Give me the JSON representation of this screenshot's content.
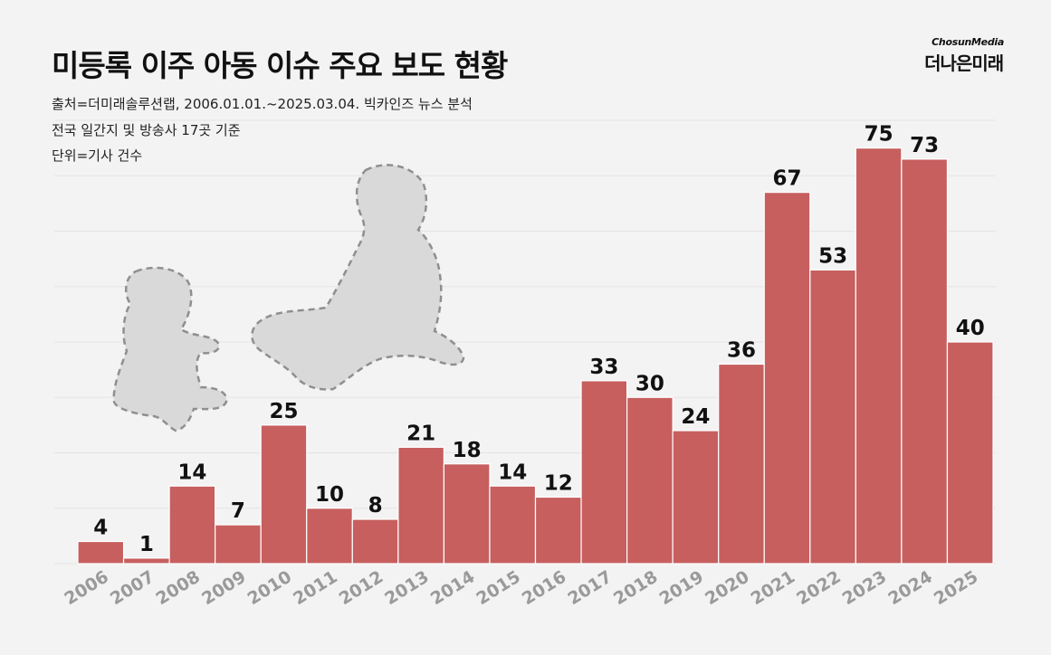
{
  "header": {
    "title": "미등록 이주 아동 이슈 주요 보도 현황",
    "source_line": "출처=더미래솔루션랩, 2006.01.01.~2025.03.04. 빅카인즈 뉴스 분석",
    "scope_line": "전국 일간지 및 방송사 17곳 기준",
    "unit_line": "단위=기사 건수"
  },
  "brand": {
    "top": "ChosunMedia",
    "name": "더나은미래"
  },
  "chart_data": {
    "type": "bar",
    "title": "미등록 이주 아동 이슈 주요 보도 현황",
    "xlabel": "",
    "ylabel": "기사 건수",
    "categories": [
      "2006",
      "2007",
      "2008",
      "2009",
      "2010",
      "2011",
      "2012",
      "2013",
      "2014",
      "2015",
      "2016",
      "2017",
      "2018",
      "2019",
      "2020",
      "2021",
      "2022",
      "2023",
      "2024",
      "2025"
    ],
    "values": [
      4,
      1,
      14,
      7,
      25,
      10,
      8,
      21,
      18,
      14,
      12,
      33,
      30,
      24,
      36,
      67,
      53,
      75,
      73,
      40
    ],
    "ylim": [
      0,
      80
    ],
    "bar_color": "#c75f5f",
    "grid": true
  },
  "illustration": {
    "icon": "children-silhouette-icon"
  }
}
